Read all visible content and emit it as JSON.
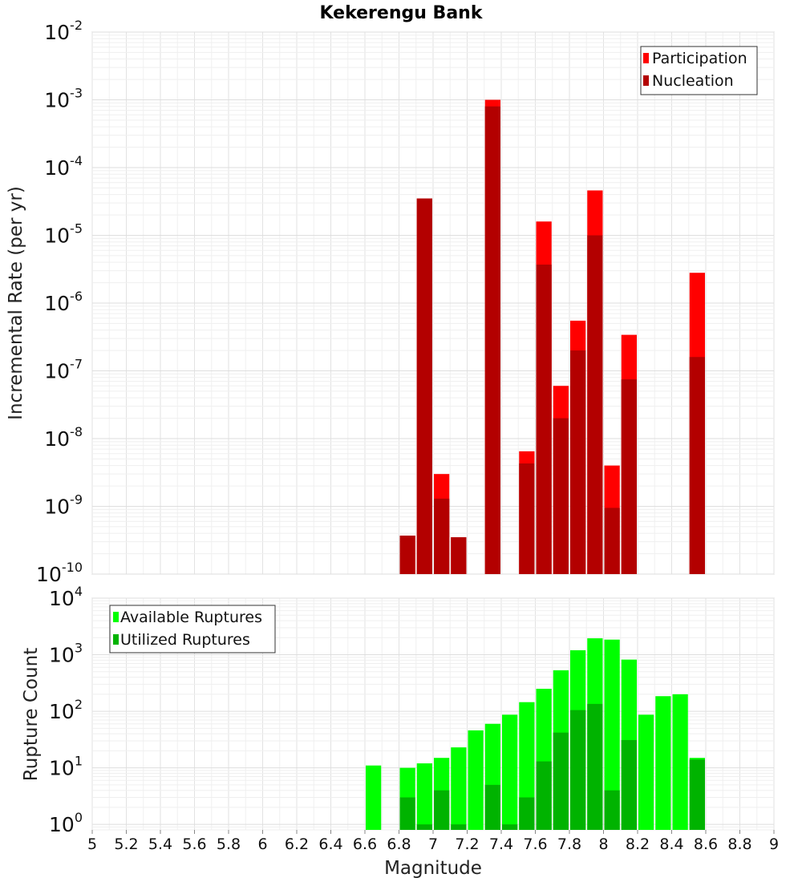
{
  "chart_data": [
    {
      "type": "bar",
      "title": "Kekerengu Bank",
      "xlabel": "",
      "ylabel": "Incremental Rate (per yr)",
      "yscale": "log",
      "ylim": [
        1e-10,
        0.01
      ],
      "xlim": [
        5,
        9
      ],
      "bar_width": 0.1,
      "grid": true,
      "legend_position": "top-right",
      "series": [
        {
          "name": "Participation",
          "color": "#ff0000",
          "x": [
            6.85,
            6.95,
            7.05,
            7.15,
            7.35,
            7.55,
            7.65,
            7.75,
            7.85,
            7.95,
            8.05,
            8.15,
            8.55
          ],
          "values": [
            3.7e-10,
            3.5e-05,
            3e-09,
            3.5e-10,
            0.001,
            6.5e-09,
            1.6e-05,
            6e-08,
            5.5e-07,
            4.6e-05,
            4e-09,
            3.4e-07,
            2.8e-06
          ]
        },
        {
          "name": "Nucleation",
          "color": "#b30000",
          "x": [
            6.85,
            6.95,
            7.05,
            7.15,
            7.35,
            7.55,
            7.65,
            7.75,
            7.85,
            7.95,
            8.05,
            8.15,
            8.55
          ],
          "values": [
            3.7e-10,
            3.5e-05,
            1.3e-09,
            3.5e-10,
            0.0008,
            4.3e-09,
            3.7e-06,
            2e-08,
            2e-07,
            1e-05,
            9.5e-10,
            7.5e-08,
            1.6e-07
          ]
        }
      ]
    },
    {
      "type": "bar",
      "title": "",
      "xlabel": "Magnitude",
      "ylabel": "Rupture Count",
      "yscale": "log",
      "ylim": [
        0.8,
        10000.0
      ],
      "xlim": [
        5,
        9
      ],
      "bar_width": 0.1,
      "grid": true,
      "legend_position": "top-left",
      "series": [
        {
          "name": "Available Ruptures",
          "color": "#00ff00",
          "x": [
            6.65,
            6.85,
            6.95,
            7.05,
            7.15,
            7.25,
            7.35,
            7.45,
            7.55,
            7.65,
            7.75,
            7.85,
            7.95,
            8.05,
            8.15,
            8.25,
            8.35,
            8.45,
            8.55
          ],
          "values": [
            11,
            10,
            12,
            15,
            23,
            46,
            60,
            87,
            145,
            250,
            530,
            1200,
            1950,
            1850,
            820,
            87,
            185,
            200,
            15
          ]
        },
        {
          "name": "Utilized Ruptures",
          "color": "#00b300",
          "x": [
            6.85,
            6.95,
            7.05,
            7.15,
            7.35,
            7.45,
            7.55,
            7.65,
            7.75,
            7.85,
            7.95,
            8.05,
            8.15,
            8.55
          ],
          "values": [
            3,
            1,
            4,
            1,
            5,
            1,
            3,
            13,
            42,
            105,
            135,
            4,
            31,
            14
          ]
        }
      ]
    }
  ],
  "x_ticks": [
    "5",
    "5.2",
    "5.4",
    "5.6",
    "5.8",
    "6",
    "6.2",
    "6.4",
    "6.6",
    "6.8",
    "7",
    "7.2",
    "7.4",
    "7.6",
    "7.8",
    "8",
    "8.2",
    "8.4",
    "8.6",
    "8.8",
    "9"
  ],
  "top_y_ticks": [
    {
      "base": "10",
      "exp": "-10",
      "value": 1e-10
    },
    {
      "base": "10",
      "exp": "-9",
      "value": 1e-09
    },
    {
      "base": "10",
      "exp": "-8",
      "value": 1e-08
    },
    {
      "base": "10",
      "exp": "-7",
      "value": 1e-07
    },
    {
      "base": "10",
      "exp": "-6",
      "value": 1e-06
    },
    {
      "base": "10",
      "exp": "-5",
      "value": 1e-05
    },
    {
      "base": "10",
      "exp": "-4",
      "value": 0.0001
    },
    {
      "base": "10",
      "exp": "-3",
      "value": 0.001
    },
    {
      "base": "10",
      "exp": "-2",
      "value": 0.01
    }
  ],
  "bottom_y_ticks": [
    {
      "base": "10",
      "exp": "0",
      "value": 1
    },
    {
      "base": "10",
      "exp": "1",
      "value": 10
    },
    {
      "base": "10",
      "exp": "2",
      "value": 100
    },
    {
      "base": "10",
      "exp": "3",
      "value": 1000
    },
    {
      "base": "10",
      "exp": "4",
      "value": 10000
    }
  ]
}
